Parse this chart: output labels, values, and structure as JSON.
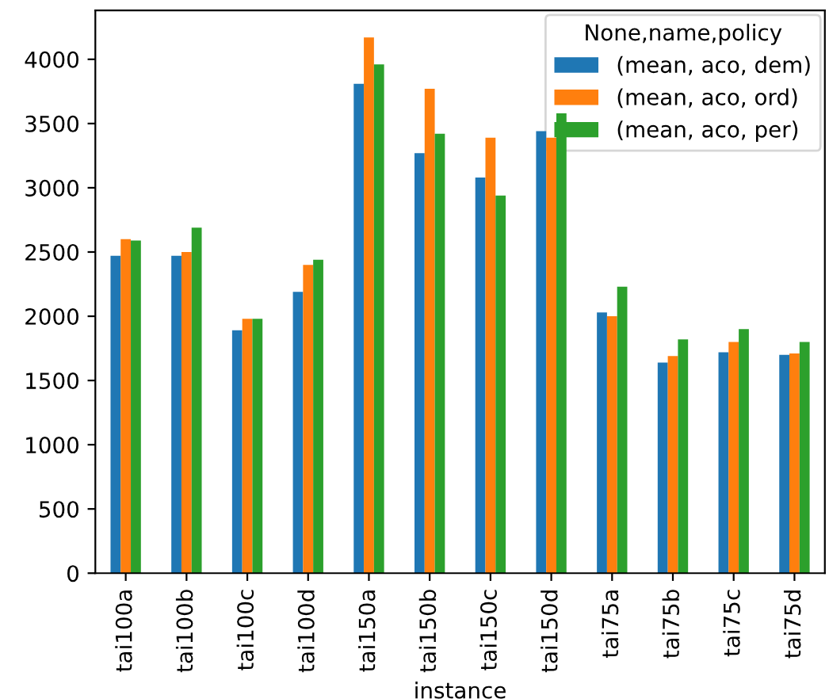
{
  "chart_data": {
    "type": "bar",
    "xlabel": "instance",
    "legend_title": "None,name,policy",
    "legend": "top right",
    "grid": false,
    "categories": [
      "tai100a",
      "tai100b",
      "tai100c",
      "tai100d",
      "tai150a",
      "tai150b",
      "tai150c",
      "tai150d",
      "tai75a",
      "tai75b",
      "tai75c",
      "tai75d"
    ],
    "ylim": [
      0,
      4380
    ],
    "yticks": [
      0,
      500,
      1000,
      1500,
      2000,
      2500,
      3000,
      3500,
      4000
    ],
    "series": [
      {
        "name": "(mean, aco, dem)",
        "color": "#1f77b4",
        "values": [
          2470,
          2470,
          1890,
          2190,
          3810,
          3270,
          3080,
          3440,
          2030,
          1640,
          1720,
          1700
        ]
      },
      {
        "name": "(mean, aco, ord)",
        "color": "#ff7f0e",
        "values": [
          2600,
          2500,
          1980,
          2400,
          4170,
          3770,
          3390,
          3390,
          2000,
          1690,
          1800,
          1710
        ]
      },
      {
        "name": "(mean, aco, per)",
        "color": "#2ca02c",
        "values": [
          2590,
          2690,
          1980,
          2440,
          3960,
          3420,
          2940,
          3580,
          2230,
          1820,
          1900,
          1800
        ]
      }
    ]
  }
}
